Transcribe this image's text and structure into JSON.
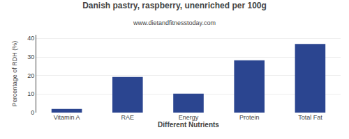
{
  "chart_data": {
    "type": "bar",
    "title": "Danish pastry, raspberry, unenriched per 100g",
    "subtitle": "www.dietandfitnesstoday.com",
    "xlabel": "Different Nutrients",
    "ylabel": "Percentage of RDH (%)",
    "categories": [
      "Vitamin A",
      "RAE",
      "Energy",
      "Protein",
      "Total Fat"
    ],
    "values": [
      2.0,
      19.2,
      10.2,
      28.2,
      37.0
    ],
    "color": "#2b4590",
    "ylim": [
      0,
      42
    ],
    "yticks": [
      0,
      10,
      20,
      30,
      40
    ],
    "grid": true
  }
}
